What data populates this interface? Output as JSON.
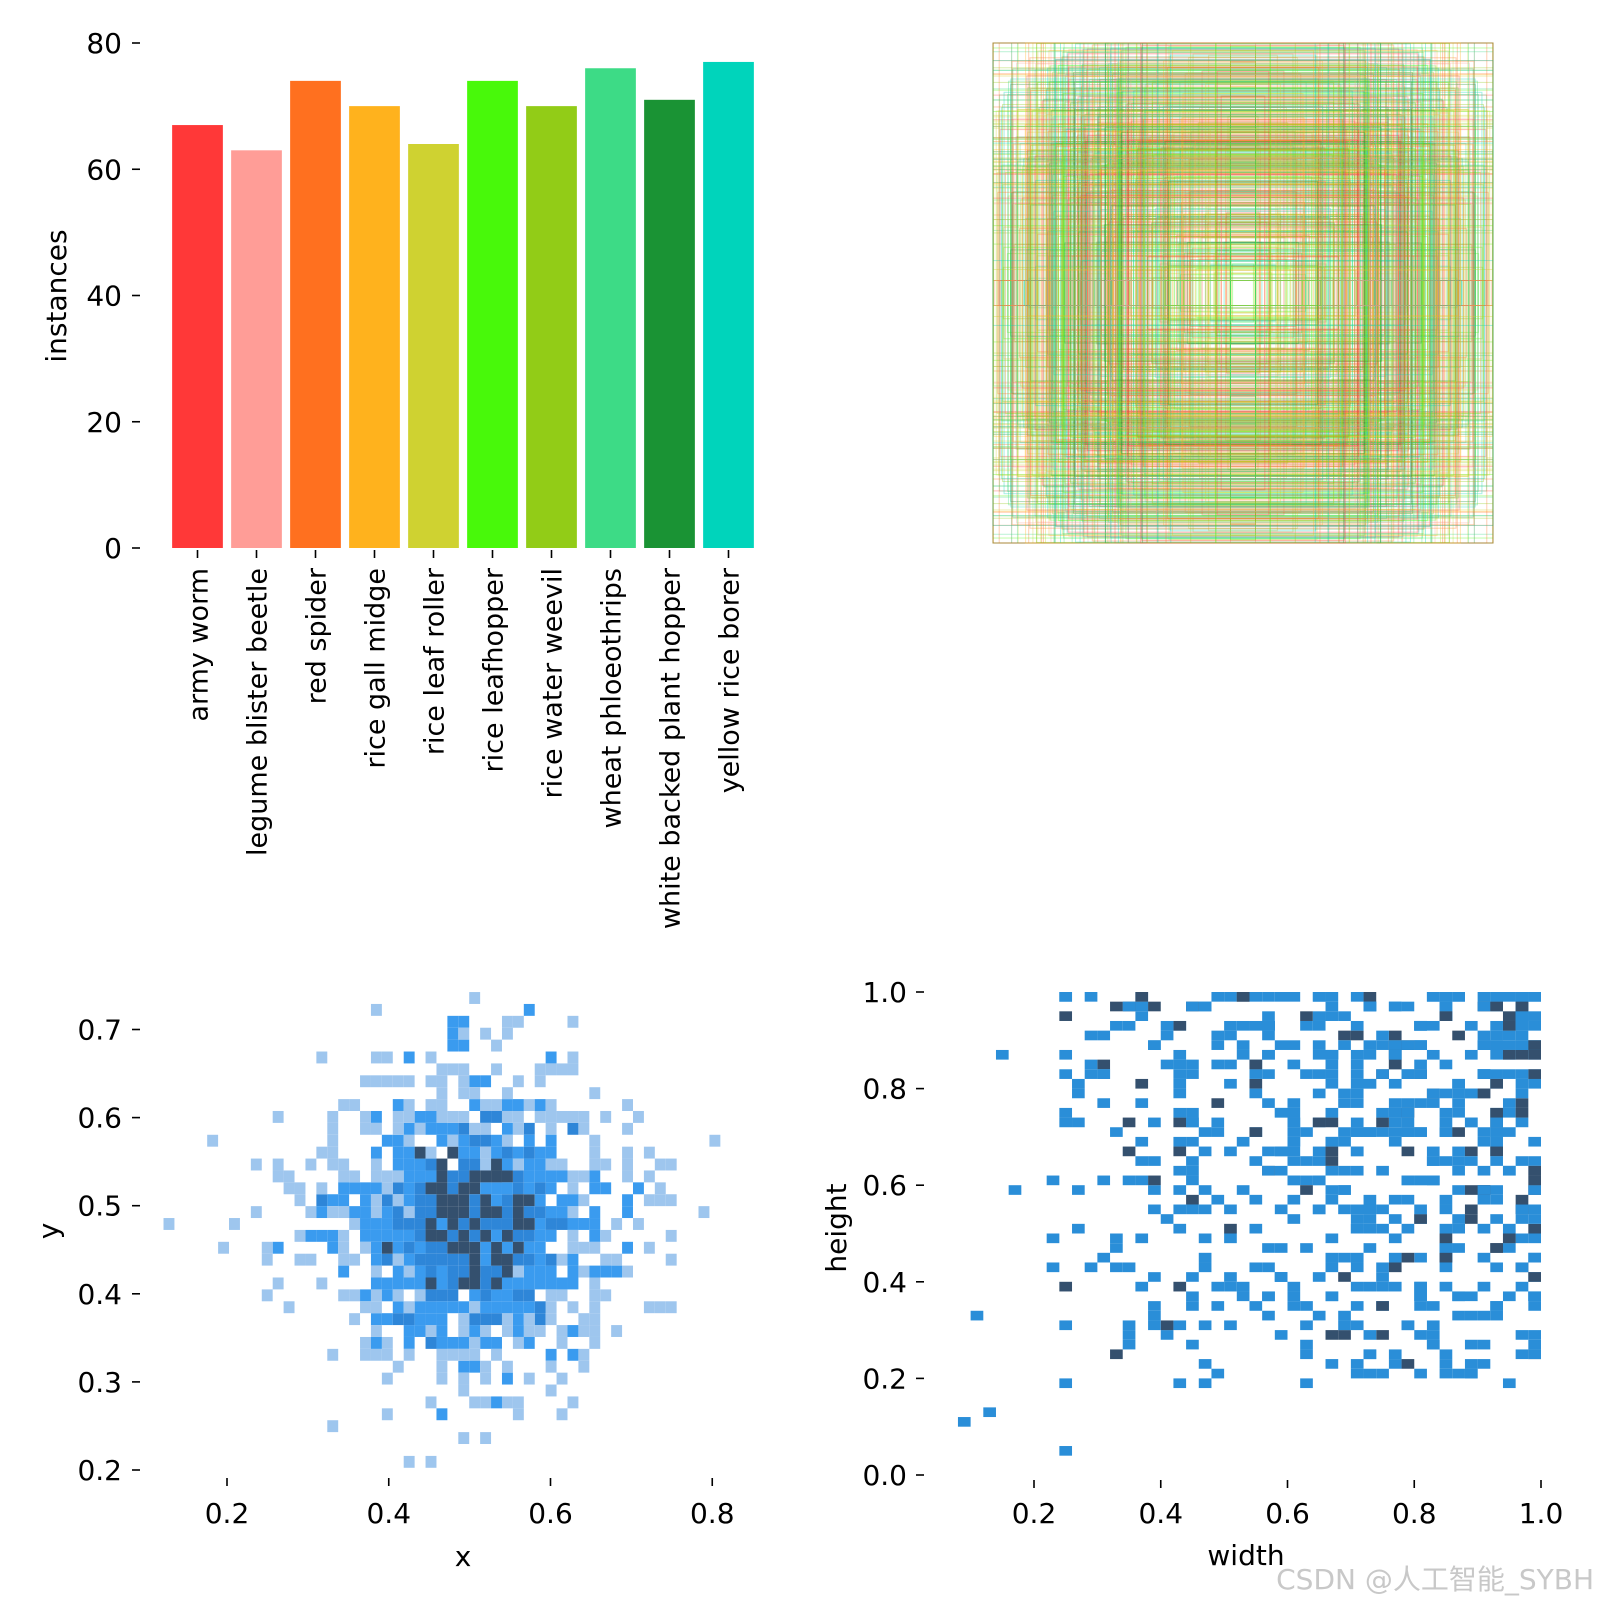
{
  "chart_data": [
    {
      "type": "bar",
      "panel": "top-left",
      "categories": [
        "army worm",
        "legume blister beetle",
        "red spider",
        "rice gall midge",
        "rice leaf roller",
        "rice leafhopper",
        "rice water weevil",
        "wheat phloeothrips",
        "white backed plant hopper",
        "yellow rice borer"
      ],
      "values": [
        67,
        63,
        74,
        70,
        64,
        74,
        70,
        76,
        71,
        77
      ],
      "colors": [
        "#FF3838",
        "#FF9D97",
        "#FF701F",
        "#FFB21D",
        "#CFD231",
        "#48F90A",
        "#92CC17",
        "#3DDB86",
        "#1A9334",
        "#00D4BB"
      ],
      "ylabel": "instances",
      "ylim": [
        0,
        80
      ],
      "yticks": [
        "0",
        "20",
        "40",
        "60",
        "80"
      ]
    },
    {
      "type": "box-overlay",
      "panel": "top-right",
      "title": "",
      "box_count_approx": 700,
      "box_colors": [
        "#FF3838",
        "#FF9D97",
        "#FF701F",
        "#FFB21D",
        "#CFD231",
        "#48F90A",
        "#92CC17",
        "#3DDB86",
        "#1A9334",
        "#00D4BB"
      ]
    },
    {
      "type": "heatmap",
      "panel": "bottom-left",
      "xlabel": "x",
      "ylabel": "y",
      "xlim": [
        0.12,
        0.85
      ],
      "ylim": [
        0.2,
        0.75
      ],
      "xticks": [
        "0.2",
        "0.4",
        "0.6",
        "0.8"
      ],
      "yticks": [
        "0.2",
        "0.3",
        "0.4",
        "0.5",
        "0.6",
        "0.7"
      ],
      "center": [
        0.5,
        0.48
      ],
      "spread": [
        0.07,
        0.07
      ],
      "colors": [
        "#9EC6EE",
        "#3A9BEF",
        "#2E86D8",
        "#34506E"
      ]
    },
    {
      "type": "heatmap",
      "panel": "bottom-right",
      "xlabel": "width",
      "ylabel": "height",
      "xlim": [
        0.0,
        1.0
      ],
      "ylim": [
        0.0,
        1.0
      ],
      "xticks": [
        "0.2",
        "0.4",
        "0.6",
        "0.8",
        "1.0"
      ],
      "yticks": [
        "0.0",
        "0.2",
        "0.4",
        "0.6",
        "0.8",
        "1.0"
      ],
      "colors": [
        "#2A8ED8",
        "#34506E"
      ]
    }
  ],
  "watermark": "CSDN @人工智能_SYBH"
}
